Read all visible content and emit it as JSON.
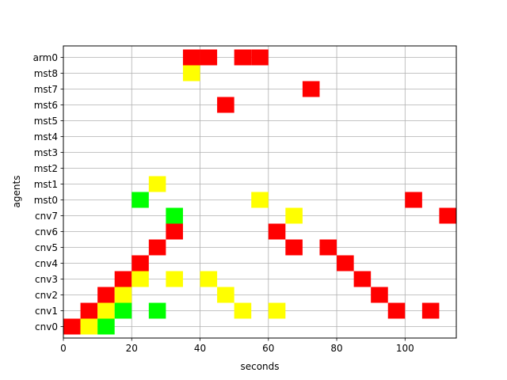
{
  "chart_data": {
    "type": "heatmap",
    "title": "",
    "xlabel": "seconds",
    "ylabel": "agents",
    "xlim": [
      0,
      115
    ],
    "xticks": [
      0,
      20,
      40,
      60,
      80,
      100
    ],
    "grid": true,
    "colors": {
      "red": "#ff0000",
      "yellow": "#ffff00",
      "green": "#00ff00",
      "grid": "#b0b0b0"
    },
    "agents": [
      "cnv0",
      "cnv1",
      "cnv2",
      "cnv3",
      "cnv4",
      "cnv5",
      "cnv6",
      "cnv7",
      "mst0",
      "mst1",
      "mst2",
      "mst3",
      "mst4",
      "mst5",
      "mst6",
      "mst7",
      "mst8",
      "arm0"
    ],
    "cells": [
      {
        "agent": "cnv0",
        "start": 0,
        "end": 5,
        "color": "red"
      },
      {
        "agent": "cnv0",
        "start": 5,
        "end": 10,
        "color": "yellow"
      },
      {
        "agent": "cnv0",
        "start": 10,
        "end": 15,
        "color": "green"
      },
      {
        "agent": "cnv1",
        "start": 5,
        "end": 10,
        "color": "red"
      },
      {
        "agent": "cnv1",
        "start": 10,
        "end": 15,
        "color": "yellow"
      },
      {
        "agent": "cnv1",
        "start": 15,
        "end": 20,
        "color": "green"
      },
      {
        "agent": "cnv1",
        "start": 25,
        "end": 30,
        "color": "green"
      },
      {
        "agent": "cnv1",
        "start": 50,
        "end": 55,
        "color": "yellow"
      },
      {
        "agent": "cnv1",
        "start": 60,
        "end": 65,
        "color": "yellow"
      },
      {
        "agent": "cnv1",
        "start": 95,
        "end": 100,
        "color": "red"
      },
      {
        "agent": "cnv1",
        "start": 105,
        "end": 110,
        "color": "red"
      },
      {
        "agent": "cnv2",
        "start": 10,
        "end": 15,
        "color": "red"
      },
      {
        "agent": "cnv2",
        "start": 15,
        "end": 20,
        "color": "yellow"
      },
      {
        "agent": "cnv2",
        "start": 45,
        "end": 50,
        "color": "yellow"
      },
      {
        "agent": "cnv2",
        "start": 90,
        "end": 95,
        "color": "red"
      },
      {
        "agent": "cnv3",
        "start": 15,
        "end": 20,
        "color": "red"
      },
      {
        "agent": "cnv3",
        "start": 20,
        "end": 25,
        "color": "yellow"
      },
      {
        "agent": "cnv3",
        "start": 30,
        "end": 35,
        "color": "yellow"
      },
      {
        "agent": "cnv3",
        "start": 40,
        "end": 45,
        "color": "yellow"
      },
      {
        "agent": "cnv3",
        "start": 85,
        "end": 90,
        "color": "red"
      },
      {
        "agent": "cnv4",
        "start": 20,
        "end": 25,
        "color": "red"
      },
      {
        "agent": "cnv4",
        "start": 80,
        "end": 85,
        "color": "red"
      },
      {
        "agent": "cnv5",
        "start": 25,
        "end": 30,
        "color": "red"
      },
      {
        "agent": "cnv5",
        "start": 65,
        "end": 70,
        "color": "red"
      },
      {
        "agent": "cnv5",
        "start": 75,
        "end": 80,
        "color": "red"
      },
      {
        "agent": "cnv6",
        "start": 30,
        "end": 35,
        "color": "red"
      },
      {
        "agent": "cnv6",
        "start": 60,
        "end": 65,
        "color": "red"
      },
      {
        "agent": "cnv7",
        "start": 30,
        "end": 35,
        "color": "green"
      },
      {
        "agent": "cnv7",
        "start": 65,
        "end": 70,
        "color": "yellow"
      },
      {
        "agent": "cnv7",
        "start": 110,
        "end": 115,
        "color": "red"
      },
      {
        "agent": "mst0",
        "start": 20,
        "end": 25,
        "color": "green"
      },
      {
        "agent": "mst0",
        "start": 55,
        "end": 60,
        "color": "yellow"
      },
      {
        "agent": "mst0",
        "start": 100,
        "end": 105,
        "color": "red"
      },
      {
        "agent": "mst1",
        "start": 25,
        "end": 30,
        "color": "yellow"
      },
      {
        "agent": "mst6",
        "start": 45,
        "end": 50,
        "color": "red"
      },
      {
        "agent": "mst7",
        "start": 70,
        "end": 75,
        "color": "red"
      },
      {
        "agent": "mst8",
        "start": 35,
        "end": 40,
        "color": "yellow"
      },
      {
        "agent": "arm0",
        "start": 35,
        "end": 40,
        "color": "red"
      },
      {
        "agent": "arm0",
        "start": 40,
        "end": 45,
        "color": "red"
      },
      {
        "agent": "arm0",
        "start": 50,
        "end": 55,
        "color": "red"
      },
      {
        "agent": "arm0",
        "start": 55,
        "end": 60,
        "color": "red"
      }
    ]
  }
}
